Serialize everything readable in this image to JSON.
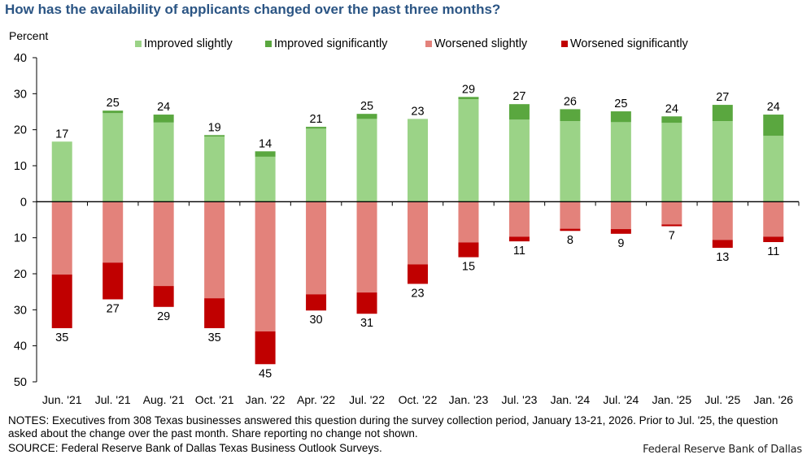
{
  "title": "How has the availability of applicants changed over the past three months?",
  "notes": "NOTES: Executives from 308 Texas businesses answered this question during the survey collection period, January 13-21, 2026. Prior to Jul. '25, the question asked about the change over the past month. Share reporting no change not shown.",
  "source": "SOURCE: Federal Reserve Bank of Dallas Texas Business Outlook Surveys.",
  "credit": "Federal Reserve Bank of Dallas",
  "colors": {
    "title": "#2b5584",
    "improved_slightly": "#9bd387",
    "improved_significantly": "#5aa73f",
    "worsened_slightly": "#e3827b",
    "worsened_significantly": "#c00000"
  },
  "chart_data": {
    "type": "bar",
    "stacked": true,
    "title": "How has the availability of applicants changed over the past three months?",
    "ylabel": "Percent",
    "xlabel": "",
    "ylim": [
      -50,
      40
    ],
    "yticks": [
      40,
      30,
      20,
      10,
      0,
      10,
      20,
      30,
      40,
      50
    ],
    "ytick_values": [
      40,
      30,
      20,
      10,
      0,
      -10,
      -20,
      -30,
      -40,
      -50
    ],
    "grid": false,
    "legend_position": "top",
    "categories": [
      "Jun. '21",
      "Jul. '21",
      "Aug. '21",
      "Oct. '21",
      "Jan. '22",
      "Apr. '22",
      "Jul. '22",
      "Oct. '22",
      "Jan. '23",
      "Jul. '23",
      "Jan. '24",
      "Jul. '24",
      "Jan. '25",
      "Jul. '25",
      "Jan. '26"
    ],
    "series": [
      {
        "name": "Improved slightly",
        "key": "improved_slightly",
        "direction": "up",
        "values": [
          16.7,
          24.6,
          22.0,
          18.1,
          12.5,
          20.3,
          23.0,
          23.0,
          28.5,
          22.8,
          22.4,
          22.1,
          21.9,
          22.4,
          18.3
        ]
      },
      {
        "name": "Improved significantly",
        "key": "improved_significantly",
        "direction": "up",
        "values": [
          0.0,
          0.7,
          2.2,
          0.4,
          1.5,
          0.5,
          1.4,
          0.0,
          0.6,
          4.3,
          3.3,
          3.0,
          1.8,
          4.5,
          5.9
        ]
      },
      {
        "name": "Worsened slightly",
        "key": "worsened_slightly",
        "direction": "down",
        "values": [
          20.2,
          16.9,
          23.4,
          26.8,
          36.0,
          25.7,
          25.2,
          17.4,
          11.3,
          9.7,
          7.5,
          7.6,
          6.3,
          10.6,
          9.7
        ]
      },
      {
        "name": "Worsened significantly",
        "key": "worsened_significantly",
        "direction": "down",
        "values": [
          14.9,
          10.2,
          5.8,
          8.3,
          9.1,
          4.5,
          5.9,
          5.4,
          4.1,
          1.3,
          0.6,
          1.3,
          0.5,
          2.2,
          1.5
        ]
      }
    ],
    "labels_improved": [
      17,
      25,
      24,
      19,
      14,
      21,
      25,
      23,
      29,
      27,
      26,
      25,
      24,
      27,
      24
    ],
    "labels_worsened": [
      35,
      27,
      29,
      35,
      45,
      30,
      31,
      23,
      15,
      11,
      8,
      9,
      7,
      13,
      11
    ]
  }
}
